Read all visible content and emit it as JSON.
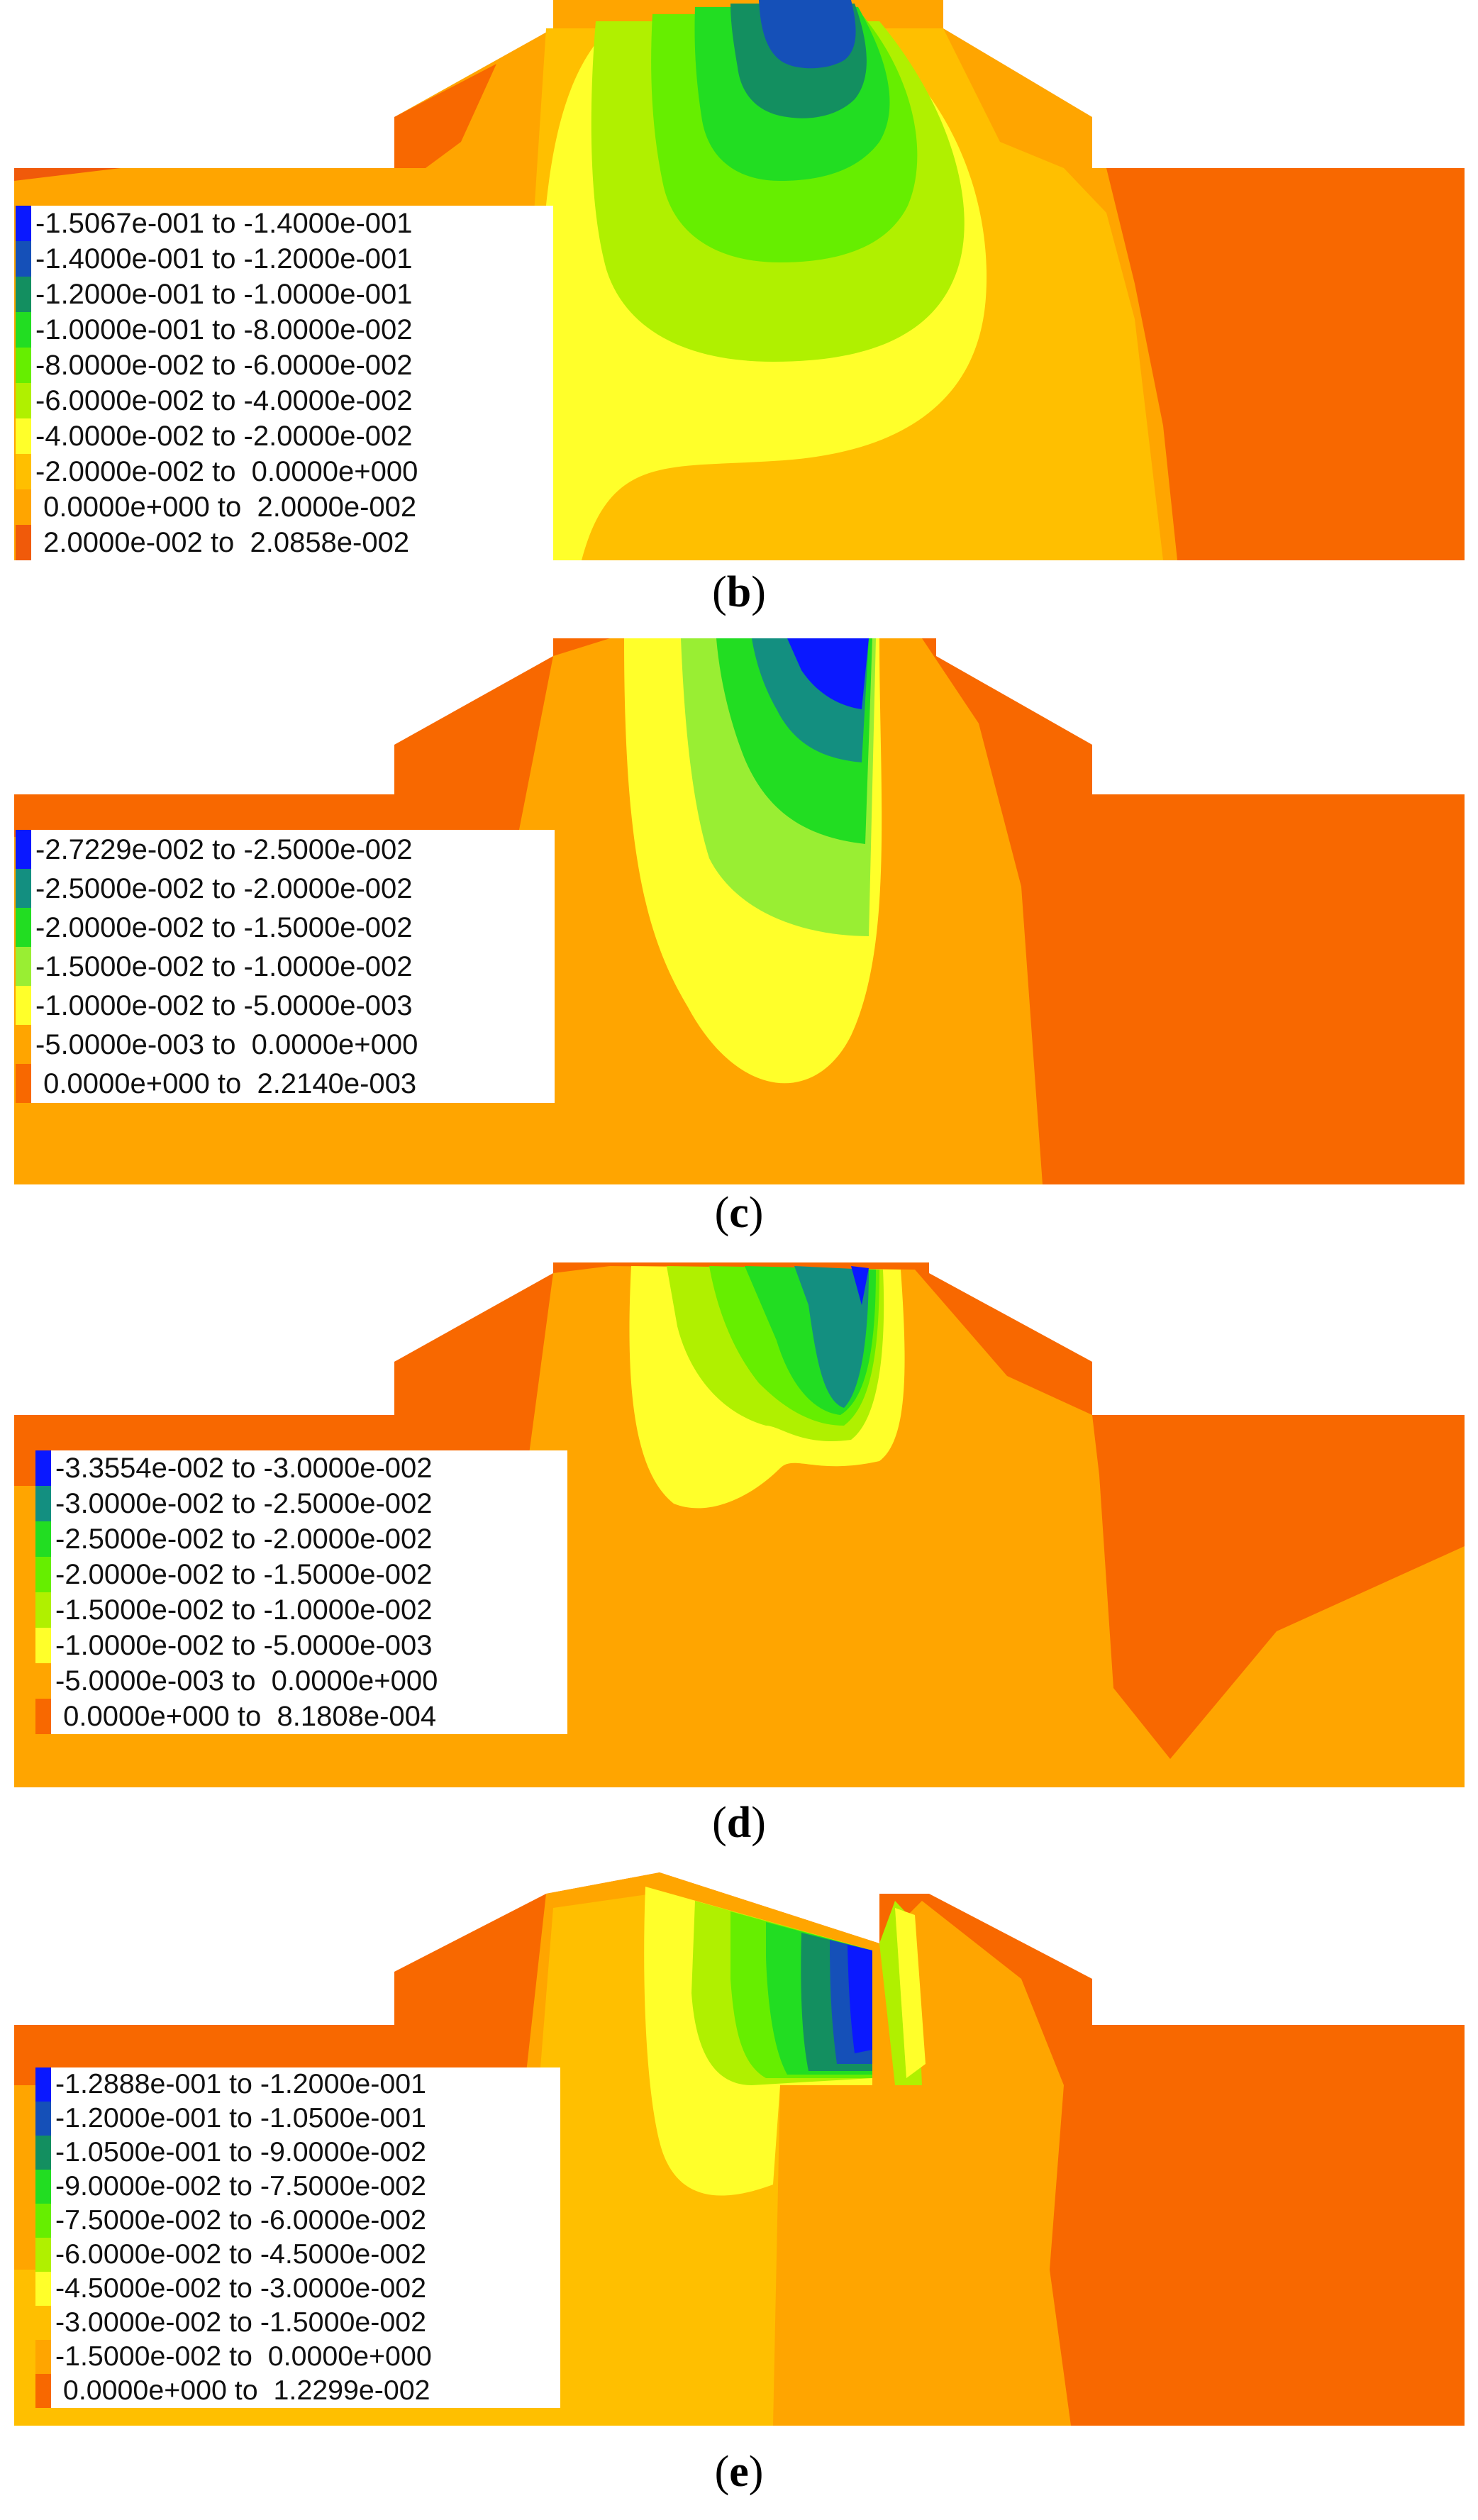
{
  "colors": {
    "c_red": "#f05a0a",
    "c_deeporange": "#f86800",
    "c_orange": "#ffa500",
    "c_amber": "#ffbf00",
    "c_yellow": "#ffff2a",
    "c_lime": "#b0f000",
    "c_green1": "#66ee00",
    "c_green2": "#22dd22",
    "c_teal": "#138f80",
    "c_navyblue": "#1550b8",
    "c_blue": "#0a18ff"
  },
  "panels": [
    {
      "id": "b",
      "caption": "b",
      "legend": [
        {
          "range": "-1.5067e-001 to -1.4000e-001",
          "color": "#0a18ff"
        },
        {
          "range": "-1.4000e-001 to -1.2000e-001",
          "color": "#1550b8"
        },
        {
          "range": "-1.2000e-001 to -1.0000e-001",
          "color": "#138f60"
        },
        {
          "range": "-1.0000e-001 to -8.0000e-002",
          "color": "#22dd22"
        },
        {
          "range": "-8.0000e-002 to -6.0000e-002",
          "color": "#66ee00"
        },
        {
          "range": "-6.0000e-002 to -4.0000e-002",
          "color": "#b0f000"
        },
        {
          "range": "-4.0000e-002 to -2.0000e-002",
          "color": "#ffff2a"
        },
        {
          "range": "-2.0000e-002 to  0.0000e+000",
          "color": "#ffbf00"
        },
        {
          "range": " 0.0000e+000 to  2.0000e-002",
          "color": "#ffa500"
        },
        {
          "range": " 2.0000e-002 to  2.0858e-002",
          "color": "#f05a0a"
        }
      ]
    },
    {
      "id": "c",
      "caption": "c",
      "legend": [
        {
          "range": "-2.7229e-002 to -2.5000e-002",
          "color": "#0a18ff"
        },
        {
          "range": "-2.5000e-002 to -2.0000e-002",
          "color": "#138f80"
        },
        {
          "range": "-2.0000e-002 to -1.5000e-002",
          "color": "#22dd22"
        },
        {
          "range": "-1.5000e-002 to -1.0000e-002",
          "color": "#99ee33"
        },
        {
          "range": "-1.0000e-002 to -5.0000e-003",
          "color": "#ffff2a"
        },
        {
          "range": "-5.0000e-003 to  0.0000e+000",
          "color": "#ffa500"
        },
        {
          "range": " 0.0000e+000 to  2.2140e-003",
          "color": "#f86800"
        }
      ]
    },
    {
      "id": "d",
      "caption": "d",
      "legend": [
        {
          "range": "-3.3554e-002 to -3.0000e-002",
          "color": "#0a18ff"
        },
        {
          "range": "-3.0000e-002 to -2.5000e-002",
          "color": "#138f80"
        },
        {
          "range": "-2.5000e-002 to -2.0000e-002",
          "color": "#22dd22"
        },
        {
          "range": "-2.0000e-002 to -1.5000e-002",
          "color": "#66ee00"
        },
        {
          "range": "-1.5000e-002 to -1.0000e-002",
          "color": "#b0f000"
        },
        {
          "range": "-1.0000e-002 to -5.0000e-003",
          "color": "#ffff2a"
        },
        {
          "range": "-5.0000e-003 to  0.0000e+000",
          "color": "#ffa500"
        },
        {
          "range": " 0.0000e+000 to  8.1808e-004",
          "color": "#f86800"
        }
      ]
    },
    {
      "id": "e",
      "caption": "e",
      "legend": [
        {
          "range": "-1.2888e-001 to -1.2000e-001",
          "color": "#0a18ff"
        },
        {
          "range": "-1.2000e-001 to -1.0500e-001",
          "color": "#1550b8"
        },
        {
          "range": "-1.0500e-001 to -9.0000e-002",
          "color": "#138f60"
        },
        {
          "range": "-9.0000e-002 to -7.5000e-002",
          "color": "#22dd22"
        },
        {
          "range": "-7.5000e-002 to -6.0000e-002",
          "color": "#66ee00"
        },
        {
          "range": "-6.0000e-002 to -4.5000e-002",
          "color": "#b0f000"
        },
        {
          "range": "-4.5000e-002 to -3.0000e-002",
          "color": "#ffff2a"
        },
        {
          "range": "-3.0000e-002 to -1.5000e-002",
          "color": "#ffbf00"
        },
        {
          "range": "-1.5000e-002 to  0.0000e+000",
          "color": "#ffa500"
        },
        {
          "range": " 0.0000e+000 to  1.2299e-002",
          "color": "#f86800"
        }
      ]
    }
  ]
}
